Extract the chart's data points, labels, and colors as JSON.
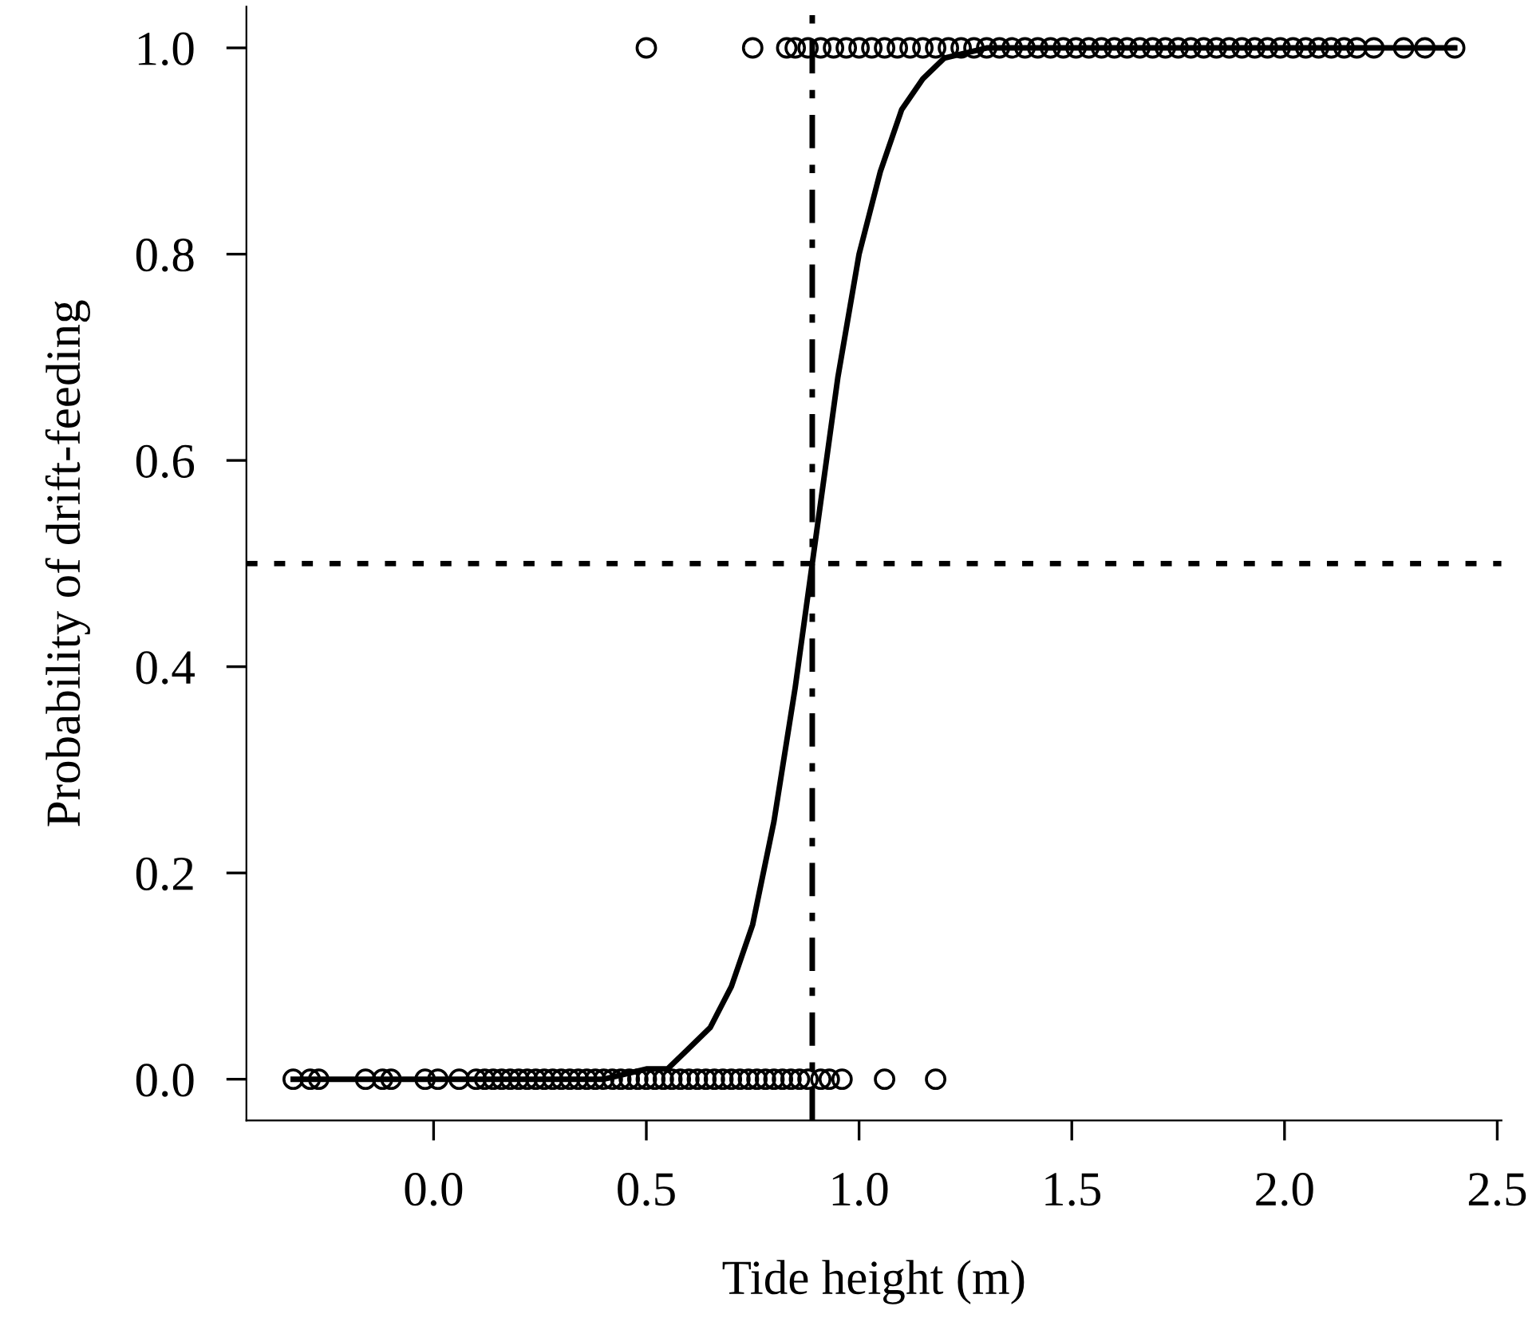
{
  "chart_data": {
    "type": "scatter",
    "xlabel": "Tide height (m)",
    "ylabel": "Probability of drift-feeding",
    "xlim": [
      -0.44,
      2.51
    ],
    "ylim": [
      -0.04,
      1.04
    ],
    "xticks": [
      {
        "value": 0,
        "label": "0.0"
      },
      {
        "value": 0.5,
        "label": "0.5"
      },
      {
        "value": 1,
        "label": "1.0"
      },
      {
        "value": 1.5,
        "label": "1.5"
      },
      {
        "value": 2,
        "label": "2.0"
      },
      {
        "value": 2.5,
        "label": "2.5"
      }
    ],
    "yticks": [
      {
        "value": 0,
        "label": "0.0"
      },
      {
        "value": 0.2,
        "label": "0.2"
      },
      {
        "value": 0.4,
        "label": "0.4"
      },
      {
        "value": 0.6,
        "label": "0.6"
      },
      {
        "value": 0.8,
        "label": "0.8"
      },
      {
        "value": 1,
        "label": "1.0"
      }
    ],
    "grid": false,
    "legend": false,
    "marker": "circle",
    "series": [
      {
        "color": "#000000",
        "x": [
          -0.33,
          -0.29,
          -0.27,
          -0.16,
          -0.12,
          -0.1,
          -0.02,
          0.01,
          0.06,
          0.1,
          0.12,
          0.14,
          0.16,
          0.18,
          0.2,
          0.22,
          0.24,
          0.26,
          0.28,
          0.3,
          0.32,
          0.34,
          0.36,
          0.38,
          0.4,
          0.42,
          0.44,
          0.46,
          0.48,
          0.5,
          0.52,
          0.54,
          0.56,
          0.58,
          0.6,
          0.62,
          0.64,
          0.66,
          0.68,
          0.7,
          0.72,
          0.74,
          0.76,
          0.78,
          0.8,
          0.82,
          0.84,
          0.86,
          0.88,
          0.91,
          0.93,
          0.96,
          1.06,
          1.18
        ],
        "values": [
          0,
          0,
          0,
          0,
          0,
          0,
          0,
          0,
          0,
          0,
          0,
          0,
          0,
          0,
          0,
          0,
          0,
          0,
          0,
          0,
          0,
          0,
          0,
          0,
          0,
          0,
          0,
          0,
          0,
          0,
          0,
          0,
          0,
          0,
          0,
          0,
          0,
          0,
          0,
          0,
          0,
          0,
          0,
          0,
          0,
          0,
          0,
          0,
          0,
          0,
          0,
          0,
          0,
          0
        ]
      },
      {
        "color": "#000000",
        "x": [
          0.5,
          0.75,
          0.83,
          0.85,
          0.88,
          0.91,
          0.94,
          0.97,
          1.0,
          1.03,
          1.06,
          1.09,
          1.12,
          1.15,
          1.18,
          1.21,
          1.24,
          1.27,
          1.3,
          1.33,
          1.36,
          1.39,
          1.42,
          1.45,
          1.48,
          1.51,
          1.54,
          1.57,
          1.6,
          1.63,
          1.66,
          1.69,
          1.72,
          1.75,
          1.78,
          1.81,
          1.84,
          1.87,
          1.9,
          1.93,
          1.96,
          1.99,
          2.02,
          2.05,
          2.08,
          2.11,
          2.14,
          2.17,
          2.21,
          2.28,
          2.33,
          2.4
        ],
        "values": [
          1,
          1,
          1,
          1,
          1,
          1,
          1,
          1,
          1,
          1,
          1,
          1,
          1,
          1,
          1,
          1,
          1,
          1,
          1,
          1,
          1,
          1,
          1,
          1,
          1,
          1,
          1,
          1,
          1,
          1,
          1,
          1,
          1,
          1,
          1,
          1,
          1,
          1,
          1,
          1,
          1,
          1,
          1,
          1,
          1,
          1,
          1,
          1,
          1,
          1,
          1,
          1
        ]
      },
      {
        "type": "line",
        "color": "#000000",
        "marker": "none",
        "line_style": "solid",
        "x": [
          -0.33,
          0.4,
          0.5,
          0.55,
          0.6,
          0.65,
          0.7,
          0.75,
          0.8,
          0.85,
          0.89,
          0.95,
          1.0,
          1.05,
          1.1,
          1.15,
          1.2,
          1.3,
          2.4
        ],
        "values": [
          0,
          0,
          0.01,
          0.01,
          0.03,
          0.05,
          0.09,
          0.15,
          0.25,
          0.38,
          0.5,
          0.68,
          0.8,
          0.88,
          0.94,
          0.97,
          0.99,
          1,
          1
        ]
      }
    ],
    "ref_lines": [
      {
        "axis": "y",
        "value": 0.5,
        "line_style": "dotted",
        "color": "#000000"
      },
      {
        "axis": "x",
        "value": 0.89,
        "line_style": "dashdot",
        "color": "#000000"
      }
    ]
  }
}
